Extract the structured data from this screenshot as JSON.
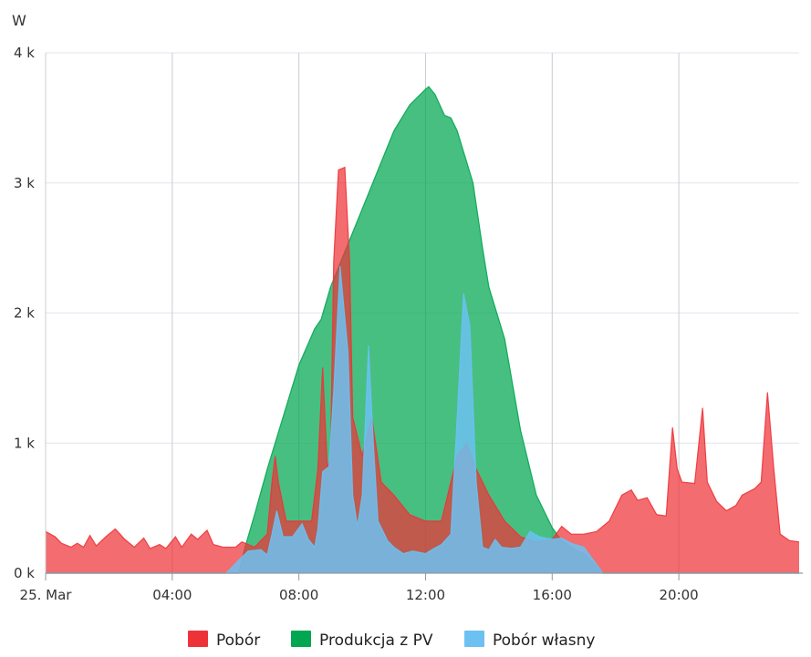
{
  "chart_data": {
    "type": "area",
    "title": "",
    "xlabel": "",
    "ylabel": "W",
    "x_axis": {
      "start_label": "25. Mar",
      "range_hours": [
        0,
        23.8
      ],
      "ticks": [
        {
          "h": 0,
          "label": "25. Mar"
        },
        {
          "h": 4,
          "label": "04:00"
        },
        {
          "h": 8,
          "label": "08:00"
        },
        {
          "h": 12,
          "label": "12:00"
        },
        {
          "h": 16,
          "label": "16:00"
        },
        {
          "h": 20,
          "label": "20:00"
        }
      ]
    },
    "y_axis": {
      "unit": "W",
      "ylim": [
        0,
        4000
      ],
      "ticks": [
        {
          "v": 0,
          "label": "0 k"
        },
        {
          "v": 1000,
          "label": "1 k"
        },
        {
          "v": 2000,
          "label": "2 k"
        },
        {
          "v": 3000,
          "label": "3 k"
        },
        {
          "v": 4000,
          "label": "4 k"
        }
      ]
    },
    "grid": true,
    "legend_position": "bottom-center",
    "series": [
      {
        "name": "Produkcja z PV",
        "color": "#00a651",
        "points": [
          [
            0,
            0
          ],
          [
            6.1,
            0
          ],
          [
            6.3,
            200
          ],
          [
            6.6,
            450
          ],
          [
            7.0,
            800
          ],
          [
            7.5,
            1200
          ],
          [
            8.0,
            1600
          ],
          [
            8.5,
            1880
          ],
          [
            8.7,
            1950
          ],
          [
            9.0,
            2200
          ],
          [
            9.5,
            2500
          ],
          [
            10.0,
            2800
          ],
          [
            10.5,
            3100
          ],
          [
            11.0,
            3400
          ],
          [
            11.5,
            3600
          ],
          [
            12.0,
            3720
          ],
          [
            12.1,
            3740
          ],
          [
            12.3,
            3680
          ],
          [
            12.6,
            3520
          ],
          [
            12.8,
            3500
          ],
          [
            13.0,
            3400
          ],
          [
            13.5,
            3000
          ],
          [
            13.8,
            2500
          ],
          [
            14.0,
            2200
          ],
          [
            14.5,
            1800
          ],
          [
            15.0,
            1100
          ],
          [
            15.5,
            600
          ],
          [
            16.0,
            350
          ],
          [
            16.3,
            250
          ],
          [
            16.7,
            180
          ],
          [
            17.0,
            150
          ],
          [
            17.3,
            80
          ],
          [
            17.6,
            0
          ],
          [
            23.8,
            0
          ]
        ]
      },
      {
        "name": "Pobór",
        "color": "#ee3338",
        "points": [
          [
            0,
            320
          ],
          [
            0.3,
            280
          ],
          [
            0.5,
            230
          ],
          [
            0.8,
            200
          ],
          [
            1.0,
            230
          ],
          [
            1.2,
            200
          ],
          [
            1.4,
            290
          ],
          [
            1.6,
            210
          ],
          [
            1.9,
            280
          ],
          [
            2.2,
            340
          ],
          [
            2.5,
            260
          ],
          [
            2.8,
            200
          ],
          [
            3.1,
            270
          ],
          [
            3.3,
            190
          ],
          [
            3.6,
            220
          ],
          [
            3.8,
            190
          ],
          [
            4.1,
            280
          ],
          [
            4.3,
            200
          ],
          [
            4.6,
            300
          ],
          [
            4.8,
            260
          ],
          [
            5.1,
            330
          ],
          [
            5.3,
            220
          ],
          [
            5.6,
            200
          ],
          [
            6.0,
            200
          ],
          [
            6.2,
            240
          ],
          [
            6.6,
            200
          ],
          [
            7.0,
            300
          ],
          [
            7.15,
            700
          ],
          [
            7.25,
            900
          ],
          [
            7.35,
            700
          ],
          [
            7.6,
            400
          ],
          [
            8.4,
            400
          ],
          [
            8.6,
            800
          ],
          [
            8.75,
            1580
          ],
          [
            8.9,
            800
          ],
          [
            9.0,
            900
          ],
          [
            9.1,
            2400
          ],
          [
            9.25,
            3100
          ],
          [
            9.45,
            3120
          ],
          [
            9.6,
            2400
          ],
          [
            9.7,
            1200
          ],
          [
            10.0,
            900
          ],
          [
            10.3,
            1200
          ],
          [
            10.6,
            700
          ],
          [
            11.0,
            600
          ],
          [
            11.5,
            450
          ],
          [
            12.0,
            400
          ],
          [
            12.5,
            400
          ],
          [
            13.0,
            900
          ],
          [
            13.3,
            1000
          ],
          [
            13.6,
            800
          ],
          [
            14.0,
            600
          ],
          [
            14.5,
            400
          ],
          [
            15.0,
            280
          ],
          [
            15.5,
            240
          ],
          [
            16.0,
            260
          ],
          [
            16.3,
            360
          ],
          [
            16.6,
            300
          ],
          [
            17.0,
            300
          ],
          [
            17.4,
            320
          ],
          [
            17.8,
            400
          ],
          [
            18.2,
            600
          ],
          [
            18.5,
            640
          ],
          [
            18.7,
            560
          ],
          [
            19.0,
            580
          ],
          [
            19.3,
            450
          ],
          [
            19.6,
            440
          ],
          [
            19.8,
            1120
          ],
          [
            19.95,
            800
          ],
          [
            20.1,
            700
          ],
          [
            20.5,
            690
          ],
          [
            20.75,
            1270
          ],
          [
            20.9,
            700
          ],
          [
            21.2,
            550
          ],
          [
            21.5,
            480
          ],
          [
            21.8,
            520
          ],
          [
            22.0,
            600
          ],
          [
            22.4,
            650
          ],
          [
            22.6,
            700
          ],
          [
            22.8,
            1390
          ],
          [
            23.0,
            800
          ],
          [
            23.2,
            300
          ],
          [
            23.5,
            250
          ],
          [
            23.8,
            240
          ]
        ]
      },
      {
        "name": "Pobór własny",
        "color": "#6cc1f2",
        "points": [
          [
            0,
            0
          ],
          [
            5.7,
            0
          ],
          [
            5.9,
            50
          ],
          [
            6.1,
            100
          ],
          [
            6.4,
            170
          ],
          [
            6.8,
            180
          ],
          [
            7.0,
            140
          ],
          [
            7.15,
            300
          ],
          [
            7.3,
            480
          ],
          [
            7.5,
            280
          ],
          [
            7.8,
            280
          ],
          [
            8.1,
            380
          ],
          [
            8.3,
            260
          ],
          [
            8.5,
            200
          ],
          [
            8.6,
            340
          ],
          [
            8.75,
            780
          ],
          [
            8.95,
            820
          ],
          [
            9.1,
            1400
          ],
          [
            9.3,
            2360
          ],
          [
            9.55,
            1700
          ],
          [
            9.7,
            600
          ],
          [
            9.85,
            360
          ],
          [
            10.0,
            600
          ],
          [
            10.2,
            1750
          ],
          [
            10.35,
            1000
          ],
          [
            10.5,
            400
          ],
          [
            10.8,
            250
          ],
          [
            11.0,
            200
          ],
          [
            11.3,
            150
          ],
          [
            11.6,
            170
          ],
          [
            12.0,
            150
          ],
          [
            12.2,
            180
          ],
          [
            12.5,
            220
          ],
          [
            12.8,
            300
          ],
          [
            13.0,
            1200
          ],
          [
            13.2,
            2150
          ],
          [
            13.4,
            1900
          ],
          [
            13.6,
            700
          ],
          [
            13.8,
            200
          ],
          [
            14.0,
            180
          ],
          [
            14.2,
            260
          ],
          [
            14.4,
            200
          ],
          [
            14.7,
            190
          ],
          [
            15.0,
            200
          ],
          [
            15.3,
            320
          ],
          [
            15.6,
            280
          ],
          [
            16.0,
            260
          ],
          [
            16.3,
            270
          ],
          [
            16.6,
            230
          ],
          [
            17.0,
            200
          ],
          [
            17.3,
            100
          ],
          [
            17.6,
            0
          ],
          [
            23.8,
            0
          ]
        ]
      }
    ],
    "legend": [
      {
        "name": "Pobór",
        "color": "#ee3338"
      },
      {
        "name": "Produkcja z PV",
        "color": "#00a651"
      },
      {
        "name": "Pobór własny",
        "color": "#6cc1f2"
      }
    ]
  }
}
